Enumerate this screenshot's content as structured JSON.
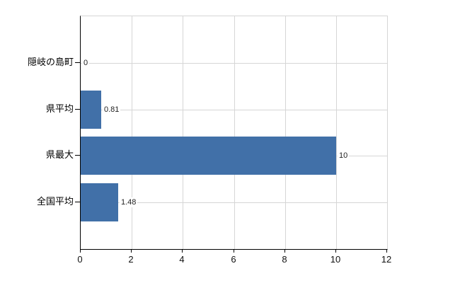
{
  "chart_data": {
    "type": "bar",
    "orientation": "horizontal",
    "title": "",
    "xlabel": "",
    "ylabel": "",
    "categories": [
      "隠岐の島町",
      "県平均",
      "県最大",
      "全国平均"
    ],
    "values": [
      0,
      0.81,
      10,
      1.48
    ],
    "value_labels": [
      "0",
      "0.81",
      "10",
      "1.48"
    ],
    "xlim": [
      0,
      12
    ],
    "xticks": [
      0,
      2,
      4,
      6,
      8,
      10,
      12
    ],
    "xtick_labels": [
      "0",
      "2",
      "4",
      "6",
      "8",
      "10",
      "12"
    ],
    "grid": true,
    "legend": "none",
    "bar_color": "#4170a8",
    "grid_color": "#d6d6d6",
    "axis_color": "#000000",
    "text_color": "#222222",
    "background_color": "#ffffff"
  }
}
